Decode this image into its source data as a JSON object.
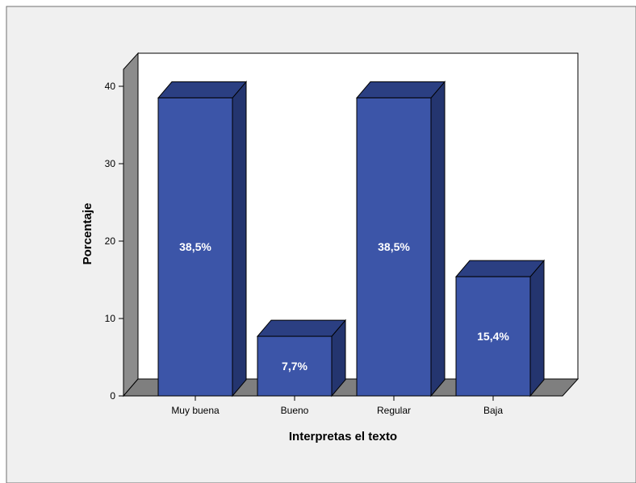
{
  "chart_data": {
    "type": "bar",
    "categories": [
      "Muy buena",
      "Bueno",
      "Regular",
      "Baja"
    ],
    "values": [
      38.5,
      7.7,
      38.5,
      15.4
    ],
    "data_labels": [
      "38,5%",
      "7,7%",
      "38,5%",
      "15,4%"
    ],
    "xlabel": "Interpretas el texto",
    "ylabel": "Porcentaje",
    "ylim": [
      0,
      40
    ],
    "yticks": [
      0,
      10,
      20,
      30,
      40
    ],
    "ytick_labels": [
      "0",
      "10",
      "20",
      "30",
      "40"
    ],
    "grid": false,
    "style": "3d",
    "colors": {
      "bar_front": "#3c55a8",
      "bar_top": "#2b3f82",
      "bar_side": "#24356f",
      "floor": "#7f7f7f",
      "left_wall": "#8c8c8c",
      "background": "#f0f0f0",
      "data_label": "#ffffff"
    }
  }
}
